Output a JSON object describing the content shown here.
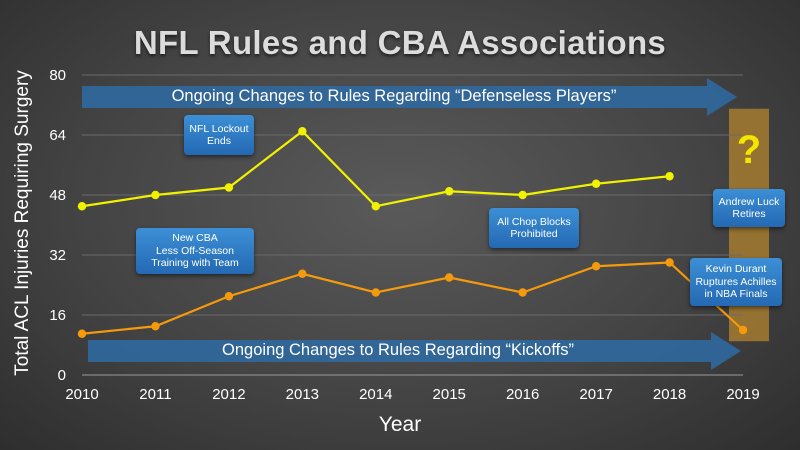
{
  "title": "NFL Rules and CBA Associations",
  "chart_data": {
    "type": "line",
    "xlabel": "Year",
    "ylabel": "Total ACL Injuries Requiring Surgery",
    "x": [
      2010,
      2011,
      2012,
      2013,
      2014,
      2015,
      2016,
      2017,
      2018,
      2019
    ],
    "x_ticks": [
      "2010",
      "2011",
      "2012",
      "2013",
      "2014",
      "2015",
      "2016",
      "2017",
      "2018",
      "2019"
    ],
    "ylim": [
      0,
      80
    ],
    "y_ticks": [
      "0",
      "16",
      "32",
      "48",
      "64",
      "80"
    ],
    "grid": true,
    "series": [
      {
        "color": "#f2f200",
        "x": [
          2010,
          2011,
          2012,
          2013,
          2014,
          2015,
          2016,
          2017,
          2018
        ],
        "values": [
          45,
          48,
          50,
          65,
          45,
          49,
          48,
          51,
          53
        ]
      },
      {
        "color": "#f59a0b",
        "x": [
          2010,
          2011,
          2012,
          2013,
          2014,
          2015,
          2016,
          2017,
          2018,
          2019
        ],
        "values": [
          11,
          13,
          21,
          27,
          22,
          26,
          22,
          29,
          30,
          12
        ]
      }
    ],
    "annotations": [
      {
        "text": "NFL Lockout\nEnds"
      },
      {
        "text": "New CBA\nLess Off-Season\nTraining with Team"
      },
      {
        "text": "All Chop Blocks\nProhibited"
      },
      {
        "text": "Andrew Luck\nRetires"
      },
      {
        "text": "Kevin Durant\nRuptures Achilles\nin NBA Finals"
      }
    ],
    "banners": [
      {
        "text": "Ongoing Changes to Rules Regarding “Defenseless Players”"
      },
      {
        "text": "Ongoing Changes to Rules Regarding “Kickoffs”"
      }
    ],
    "unknown_marker": "?",
    "highlight_year": 2019,
    "highlight_color": "#a47a30"
  }
}
